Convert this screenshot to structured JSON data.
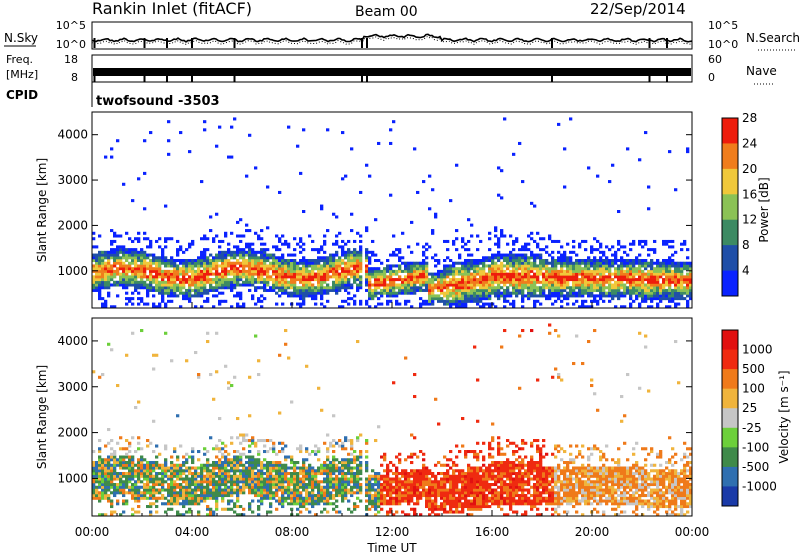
{
  "header": {
    "station": "Rankin Inlet (fitACF)",
    "beam": "Beam 00",
    "date": "22/Sep/2014"
  },
  "noise_panel": {
    "left_label": "N.Sky",
    "right_label": "N.Search",
    "right_label_style": "dotted-underline",
    "left_ticks": [
      "10^5",
      "10^0"
    ],
    "right_ticks": [
      "10^5",
      "10^0"
    ]
  },
  "freq_panel": {
    "left_label_top": "Freq.",
    "left_label_bottom": "[MHz]",
    "right_label": "Nave",
    "right_label_style": "dotted-underline",
    "left_ticks": [
      "18",
      "8"
    ],
    "right_ticks": [
      "60",
      "0"
    ]
  },
  "cpid_panel": {
    "label": "CPID",
    "program": "twofsound",
    "id": "-3503"
  },
  "chart_data": [
    {
      "type": "heatmap",
      "name": "power",
      "ylabel": "Slant Range [km]",
      "xlabel": "",
      "ylim": [
        180,
        4500
      ],
      "yticks": [
        "1000",
        "2000",
        "3000",
        "4000"
      ],
      "ytick_values": [
        1000,
        2000,
        3000,
        4000
      ],
      "colorbar_label": "Power [dB]",
      "colorbar_ticks": [
        "4",
        "8",
        "12",
        "16",
        "20",
        "24",
        "28"
      ],
      "colors": [
        "#0a22ff",
        "#1f4fa8",
        "#3c8a63",
        "#8bc255",
        "#f0c83a",
        "#f07d1c",
        "#ee1c0c"
      ]
    },
    {
      "type": "heatmap",
      "name": "velocity",
      "ylabel": "Slant Range [km]",
      "xlabel": "Time UT",
      "ylim": [
        180,
        4500
      ],
      "yticks": [
        "1000",
        "2000",
        "3000",
        "4000"
      ],
      "ytick_values": [
        1000,
        2000,
        3000,
        4000
      ],
      "xticks": [
        "00:00",
        "04:00",
        "08:00",
        "12:00",
        "16:00",
        "20:00",
        "00:00"
      ],
      "xtick_hours": [
        0,
        4,
        8,
        12,
        16,
        20,
        24
      ],
      "colorbar_label": "Velocity [m s⁻¹]",
      "colorbar_ticks": [
        "1000",
        "500",
        "100",
        "25",
        "-25",
        "-100",
        "-500",
        "-1000"
      ],
      "colors": [
        "#1a3aa8",
        "#2f6fb0",
        "#3f8a4a",
        "#6ccf3a",
        "#c6c6c6",
        "#f0b43c",
        "#ef7a1a",
        "#ef2a10",
        "#e11010"
      ]
    }
  ]
}
